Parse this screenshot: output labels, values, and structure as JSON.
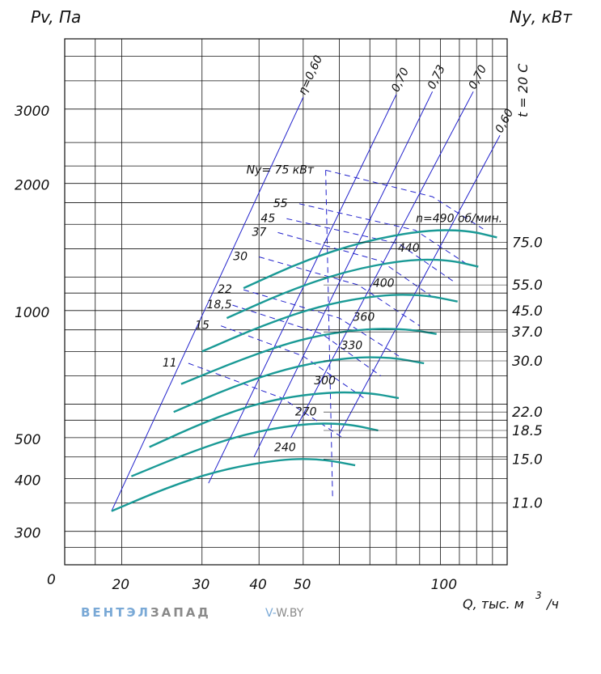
{
  "chart_data": {
    "type": "line",
    "ylabel": "Pv, Па",
    "y2label": "Nу, кВт",
    "xlabel_main": "Q, тыс. м",
    "xlabel_sup": "3",
    "xlabel_tail": "/ч",
    "temperature_note": "t = 20 С",
    "x_scale": "log",
    "y_scale": "log",
    "xlim": [
      15,
      140
    ],
    "ylim": [
      250,
      4400
    ],
    "x_ticks": [
      {
        "value": 20,
        "label": "20"
      },
      {
        "value": 30,
        "label": "30"
      },
      {
        "value": 40,
        "label": "40"
      },
      {
        "value": 50,
        "label": "50"
      },
      {
        "value": 100,
        "label": "100"
      }
    ],
    "y_ticks": [
      {
        "value": 300,
        "label": "300"
      },
      {
        "value": 400,
        "label": "400"
      },
      {
        "value": 500,
        "label": "500"
      },
      {
        "value": 1000,
        "label": "1000"
      },
      {
        "value": 2000,
        "label": "2000"
      },
      {
        "value": 3000,
        "label": "3000"
      }
    ],
    "origin_label": "0",
    "grid": true,
    "speed_label_prefix": "n=490 об/мин.",
    "series": [
      {
        "name": "240",
        "points": [
          [
            19,
            335
          ],
          [
            25,
            380
          ],
          [
            33,
            420
          ],
          [
            45,
            445
          ],
          [
            55,
            445
          ],
          [
            65,
            430
          ]
        ]
      },
      {
        "name": "270",
        "points": [
          [
            21,
            405
          ],
          [
            28,
            460
          ],
          [
            37,
            510
          ],
          [
            50,
            540
          ],
          [
            62,
            540
          ],
          [
            73,
            520
          ]
        ]
      },
      {
        "name": "300",
        "points": [
          [
            23,
            475
          ],
          [
            31,
            550
          ],
          [
            41,
            610
          ],
          [
            55,
            640
          ],
          [
            69,
            640
          ],
          [
            81,
            620
          ]
        ]
      },
      {
        "name": "330",
        "points": [
          [
            26,
            575
          ],
          [
            35,
            660
          ],
          [
            47,
            735
          ],
          [
            63,
            775
          ],
          [
            78,
            775
          ],
          [
            92,
            750
          ]
        ]
      },
      {
        "name": "360",
        "points": [
          [
            27,
            670
          ],
          [
            37,
            770
          ],
          [
            50,
            860
          ],
          [
            67,
            905
          ],
          [
            84,
            905
          ],
          [
            98,
            880
          ]
        ]
      },
      {
        "name": "400",
        "points": [
          [
            30,
            800
          ],
          [
            41,
            925
          ],
          [
            55,
            1030
          ],
          [
            74,
            1090
          ],
          [
            92,
            1090
          ],
          [
            109,
            1050
          ]
        ]
      },
      {
        "name": "440",
        "points": [
          [
            34,
            960
          ],
          [
            46,
            1110
          ],
          [
            62,
            1240
          ],
          [
            84,
            1320
          ],
          [
            104,
            1320
          ],
          [
            121,
            1270
          ]
        ]
      },
      {
        "name": "490",
        "points": [
          [
            37,
            1130
          ],
          [
            50,
            1310
          ],
          [
            68,
            1460
          ],
          [
            92,
            1550
          ],
          [
            114,
            1550
          ],
          [
            133,
            1490
          ]
        ]
      }
    ],
    "efficiency_lines": [
      {
        "label": "η=0,60",
        "points": [
          [
            19,
            335
          ],
          [
            50,
            3200
          ]
        ]
      },
      {
        "label": "0,70",
        "points": [
          [
            31,
            390
          ],
          [
            80,
            3250
          ]
        ]
      },
      {
        "label": "0,73",
        "points": [
          [
            39,
            450
          ],
          [
            96,
            3300
          ]
        ]
      },
      {
        "label": "0,70",
        "points": [
          [
            47,
            500
          ],
          [
            118,
            3300
          ]
        ]
      },
      {
        "label": "0,60",
        "points": [
          [
            60,
            510
          ],
          [
            135,
            2600
          ]
        ]
      }
    ],
    "power_curves": [
      {
        "label": "11",
        "value": 11,
        "points": [
          [
            28,
            750
          ],
          [
            45,
            620
          ],
          [
            61,
            500
          ]
        ]
      },
      {
        "label": "15",
        "value": 15,
        "points": [
          [
            33,
            920
          ],
          [
            50,
            780
          ],
          [
            68,
            620
          ]
        ]
      },
      {
        "label": "18,5",
        "value": 18.5,
        "points": [
          [
            35,
            1030
          ],
          [
            55,
            880
          ],
          [
            74,
            700
          ]
        ]
      },
      {
        "label": "22",
        "value": 22,
        "points": [
          [
            37,
            1120
          ],
          [
            60,
            960
          ],
          [
            81,
            780
          ]
        ]
      },
      {
        "label": "30",
        "value": 30,
        "points": [
          [
            40,
            1340
          ],
          [
            66,
            1150
          ],
          [
            90,
            920
          ]
        ]
      },
      {
        "label": "37",
        "value": 37,
        "points": [
          [
            44,
            1530
          ],
          [
            74,
            1310
          ],
          [
            98,
            1060
          ]
        ]
      },
      {
        "label": "45",
        "value": 45,
        "points": [
          [
            46,
            1650
          ],
          [
            81,
            1440
          ],
          [
            107,
            1170
          ]
        ]
      },
      {
        "label": "55",
        "value": 55,
        "points": [
          [
            49,
            1790
          ],
          [
            88,
            1550
          ],
          [
            114,
            1290
          ]
        ]
      },
      {
        "label": "Nу= 75 кВт",
        "value": 75,
        "points": [
          [
            56,
            2150
          ],
          [
            96,
            1860
          ],
          [
            124,
            1560
          ]
        ]
      }
    ],
    "right_scale_values": [
      {
        "label": "75.0",
        "pressure": 1450
      },
      {
        "label": "55.0",
        "pressure": 1150
      },
      {
        "label": "45.0",
        "pressure": 1000
      },
      {
        "label": "37.0",
        "pressure": 890
      },
      {
        "label": "30.0",
        "pressure": 760
      },
      {
        "label": "22.0",
        "pressure": 575
      },
      {
        "label": "18.5",
        "pressure": 520
      },
      {
        "label": "15.0",
        "pressure": 445
      },
      {
        "label": "11.0",
        "pressure": 350
      }
    ]
  },
  "footer": {
    "brand_part1": "ВЕНТЭЛ",
    "brand_part2": "ЗАПАД",
    "site_prefix": "V-",
    "site_rest": "W.BY",
    "brand_color1": "#7aa9d6",
    "brand_color2": "#8a8a8a"
  }
}
